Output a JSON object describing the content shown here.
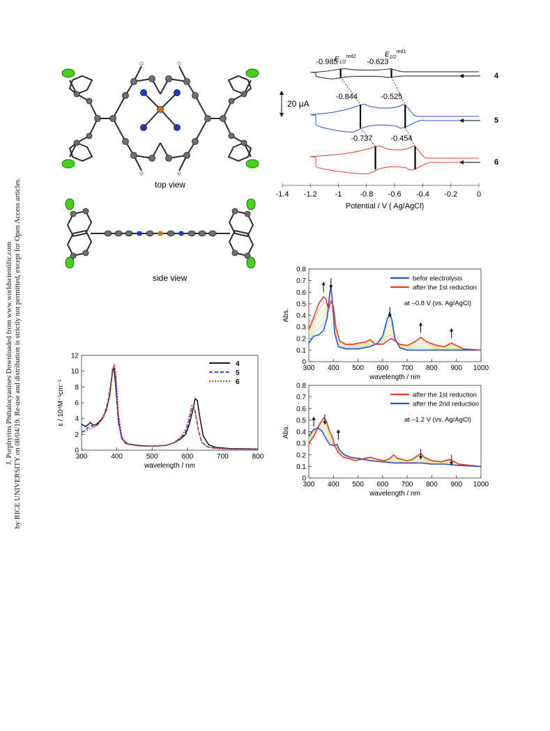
{
  "sidebar": {
    "line1": "J. Porphyrins Phthalocyanines Downloaded from www.worldscientific.com",
    "line2": "by RICE UNIVERSITY on 08/04/19. Re-use and distribution is strictly not permitted, except for Open Access articles."
  },
  "structure": {
    "top_caption": "top view",
    "side_caption": "side view"
  },
  "colors": {
    "black": "#1a1a1a",
    "blue": "#2b4fd6",
    "red": "#e8392c",
    "green_atom": "#46d11f",
    "grey_atom": "#6f6f6f",
    "n_atom": "#1f3bc2",
    "metal_atom": "#c8741e"
  },
  "chart_data": [
    {
      "id": "cv",
      "type": "line",
      "xlabel": "Potential / V ( Ag/AgCl)",
      "x_ticks": [
        "-1.4",
        "-1.2",
        "-1",
        "-0.8",
        "-0.6",
        "-0.4",
        "-0.2",
        "0"
      ],
      "xlim": [
        -1.4,
        0
      ],
      "scale_bar_label": "20 μA",
      "peak_header_1": "E1/2red2",
      "peak_header_2": "E1/2red1",
      "series": [
        {
          "name": "4",
          "e_red2": -0.985,
          "e_red1": -0.623,
          "labels": [
            "-0.985",
            "-0.623"
          ]
        },
        {
          "name": "5",
          "e_red2": -0.844,
          "e_red1": -0.525,
          "labels": [
            "-0.844",
            "-0.525"
          ]
        },
        {
          "name": "6",
          "e_red2": -0.737,
          "e_red1": -0.454,
          "labels": [
            "-0.737",
            "-0.454"
          ]
        }
      ]
    },
    {
      "id": "uvvis",
      "type": "line",
      "xlabel": "wavelength / nm",
      "ylabel": "ε / 10⁴M⁻¹cm⁻¹",
      "xlim": [
        300,
        800
      ],
      "ylim": [
        0,
        12
      ],
      "x_ticks": [
        "300",
        "400",
        "500",
        "600",
        "700",
        "800"
      ],
      "y_ticks": [
        "0",
        "2",
        "4",
        "6",
        "8",
        "10",
        "12"
      ],
      "legend": [
        "4",
        "5",
        "6"
      ],
      "series": [
        {
          "name": "4",
          "points": [
            [
              300,
              3.3
            ],
            [
              310,
              3.0
            ],
            [
              318,
              3.2
            ],
            [
              325,
              3.5
            ],
            [
              332,
              3.2
            ],
            [
              340,
              3.2
            ],
            [
              350,
              3.6
            ],
            [
              360,
              4.1
            ],
            [
              370,
              5.0
            ],
            [
              380,
              7.0
            ],
            [
              388,
              10.2
            ],
            [
              392,
              10.4
            ],
            [
              397,
              8.0
            ],
            [
              405,
              3.5
            ],
            [
              415,
              1.4
            ],
            [
              430,
              0.8
            ],
            [
              460,
              0.6
            ],
            [
              500,
              0.5
            ],
            [
              540,
              0.6
            ],
            [
              560,
              0.9
            ],
            [
              580,
              1.4
            ],
            [
              595,
              2.0
            ],
            [
              605,
              3.2
            ],
            [
              615,
              5.0
            ],
            [
              622,
              6.5
            ],
            [
              628,
              6.3
            ],
            [
              636,
              4.0
            ],
            [
              645,
              1.8
            ],
            [
              660,
              0.7
            ],
            [
              680,
              0.35
            ],
            [
              720,
              0.2
            ],
            [
              800,
              0.15
            ]
          ]
        },
        {
          "name": "5",
          "points": [
            [
              300,
              2.3
            ],
            [
              310,
              2.5
            ],
            [
              318,
              2.9
            ],
            [
              325,
              3.1
            ],
            [
              335,
              3.0
            ],
            [
              345,
              3.2
            ],
            [
              355,
              3.7
            ],
            [
              365,
              4.6
            ],
            [
              375,
              6.2
            ],
            [
              385,
              9.0
            ],
            [
              391,
              10.6
            ],
            [
              396,
              9.6
            ],
            [
              403,
              4.5
            ],
            [
              412,
              1.7
            ],
            [
              425,
              0.8
            ],
            [
              460,
              0.55
            ],
            [
              500,
              0.5
            ],
            [
              540,
              0.6
            ],
            [
              560,
              0.9
            ],
            [
              580,
              1.5
            ],
            [
              595,
              2.3
            ],
            [
              605,
              3.8
            ],
            [
              612,
              5.3
            ],
            [
              617,
              5.6
            ],
            [
              622,
              5.0
            ],
            [
              630,
              2.8
            ],
            [
              640,
              1.1
            ],
            [
              655,
              0.45
            ],
            [
              680,
              0.25
            ],
            [
              720,
              0.15
            ],
            [
              800,
              0.12
            ]
          ]
        },
        {
          "name": "6",
          "points": [
            [
              300,
              2.2
            ],
            [
              310,
              2.4
            ],
            [
              320,
              2.7
            ],
            [
              330,
              2.8
            ],
            [
              340,
              3.0
            ],
            [
              350,
              3.4
            ],
            [
              360,
              4.0
            ],
            [
              370,
              5.0
            ],
            [
              380,
              7.0
            ],
            [
              388,
              9.8
            ],
            [
              393,
              10.9
            ],
            [
              398,
              9.5
            ],
            [
              405,
              4.6
            ],
            [
              414,
              1.8
            ],
            [
              425,
              0.8
            ],
            [
              460,
              0.55
            ],
            [
              500,
              0.5
            ],
            [
              540,
              0.6
            ],
            [
              560,
              0.9
            ],
            [
              580,
              1.6
            ],
            [
              595,
              2.6
            ],
            [
              605,
              4.2
            ],
            [
              612,
              5.6
            ],
            [
              618,
              5.5
            ],
            [
              624,
              4.4
            ],
            [
              632,
              2.3
            ],
            [
              642,
              0.9
            ],
            [
              658,
              0.4
            ],
            [
              680,
              0.22
            ],
            [
              720,
              0.14
            ],
            [
              800,
              0.12
            ]
          ]
        }
      ]
    },
    {
      "id": "spec1",
      "type": "line",
      "ylabel": "Abs.",
      "xlabel": "wavelength / nm",
      "xlim": [
        300,
        1000
      ],
      "ylim": [
        0,
        0.8
      ],
      "x_ticks": [
        "300",
        "400",
        "500",
        "600",
        "700",
        "800",
        "900",
        "1000"
      ],
      "y_ticks": [
        "0",
        "0.1",
        "0.2",
        "0.3",
        "0.4",
        "0.5",
        "0.6",
        "0.7",
        "0.8"
      ],
      "legend": [
        "befor electrolysis",
        "after the 1st reduction"
      ],
      "condition": "at –0.8 V (vs. Ag/AgCl)",
      "series": [
        {
          "name": "befor electrolysis",
          "points": [
            [
              300,
              0.16
            ],
            [
              320,
              0.22
            ],
            [
              340,
              0.23
            ],
            [
              360,
              0.27
            ],
            [
              375,
              0.38
            ],
            [
              385,
              0.6
            ],
            [
              390,
              0.65
            ],
            [
              395,
              0.55
            ],
            [
              405,
              0.25
            ],
            [
              420,
              0.13
            ],
            [
              450,
              0.11
            ],
            [
              500,
              0.11
            ],
            [
              550,
              0.13
            ],
            [
              580,
              0.16
            ],
            [
              600,
              0.22
            ],
            [
              615,
              0.34
            ],
            [
              628,
              0.42
            ],
            [
              638,
              0.36
            ],
            [
              650,
              0.2
            ],
            [
              670,
              0.12
            ],
            [
              700,
              0.1
            ],
            [
              800,
              0.1
            ],
            [
              900,
              0.1
            ],
            [
              1000,
              0.1
            ]
          ]
        },
        {
          "name": "after the 1st reduction",
          "points": [
            [
              300,
              0.28
            ],
            [
              320,
              0.38
            ],
            [
              340,
              0.5
            ],
            [
              360,
              0.56
            ],
            [
              370,
              0.54
            ],
            [
              380,
              0.45
            ],
            [
              390,
              0.52
            ],
            [
              400,
              0.48
            ],
            [
              410,
              0.3
            ],
            [
              425,
              0.18
            ],
            [
              450,
              0.15
            ],
            [
              480,
              0.15
            ],
            [
              500,
              0.16
            ],
            [
              530,
              0.17
            ],
            [
              550,
              0.19
            ],
            [
              570,
              0.15
            ],
            [
              600,
              0.15
            ],
            [
              620,
              0.18
            ],
            [
              635,
              0.2
            ],
            [
              650,
              0.18
            ],
            [
              670,
              0.15
            ],
            [
              700,
              0.14
            ],
            [
              730,
              0.17
            ],
            [
              755,
              0.21
            ],
            [
              780,
              0.17
            ],
            [
              820,
              0.14
            ],
            [
              850,
              0.13
            ],
            [
              880,
              0.16
            ],
            [
              900,
              0.14
            ],
            [
              930,
              0.11
            ],
            [
              1000,
              0.1
            ]
          ]
        }
      ]
    },
    {
      "id": "spec2",
      "type": "line",
      "ylabel": "Abs.",
      "xlabel": "wavelength / nm",
      "xlim": [
        300,
        1000
      ],
      "ylim": [
        0,
        0.8
      ],
      "x_ticks": [
        "300",
        "400",
        "500",
        "600",
        "700",
        "800",
        "900",
        "1000"
      ],
      "y_ticks": [
        "0",
        "0.1",
        "0.2",
        "0.3",
        "0.4",
        "0.5",
        "0.6",
        "0.7",
        "0.8"
      ],
      "legend": [
        "after the 1st reduction",
        "after the 2nd reduction"
      ],
      "condition": "at –1.2 V (vs. Ag/AgCl)",
      "series": [
        {
          "name": "after the 1st reduction",
          "points": [
            [
              300,
              0.3
            ],
            [
              320,
              0.36
            ],
            [
              340,
              0.45
            ],
            [
              360,
              0.52
            ],
            [
              370,
              0.5
            ],
            [
              385,
              0.4
            ],
            [
              395,
              0.36
            ],
            [
              405,
              0.28
            ],
            [
              420,
              0.22
            ],
            [
              440,
              0.18
            ],
            [
              460,
              0.17
            ],
            [
              490,
              0.15
            ],
            [
              510,
              0.16
            ],
            [
              530,
              0.17
            ],
            [
              550,
              0.18
            ],
            [
              580,
              0.16
            ],
            [
              610,
              0.15
            ],
            [
              630,
              0.17
            ],
            [
              645,
              0.2
            ],
            [
              660,
              0.17
            ],
            [
              680,
              0.16
            ],
            [
              700,
              0.15
            ],
            [
              720,
              0.16
            ],
            [
              740,
              0.19
            ],
            [
              755,
              0.21
            ],
            [
              770,
              0.18
            ],
            [
              800,
              0.15
            ],
            [
              840,
              0.14
            ],
            [
              870,
              0.16
            ],
            [
              885,
              0.15
            ],
            [
              910,
              0.12
            ],
            [
              1000,
              0.1
            ]
          ]
        },
        {
          "name": "after the 2nd reduction",
          "points": [
            [
              300,
              0.36
            ],
            [
              320,
              0.42
            ],
            [
              340,
              0.43
            ],
            [
              355,
              0.4
            ],
            [
              370,
              0.34
            ],
            [
              385,
              0.29
            ],
            [
              400,
              0.28
            ],
            [
              415,
              0.29
            ],
            [
              425,
              0.24
            ],
            [
              445,
              0.2
            ],
            [
              470,
              0.18
            ],
            [
              500,
              0.17
            ],
            [
              550,
              0.15
            ],
            [
              600,
              0.14
            ],
            [
              650,
              0.13
            ],
            [
              700,
              0.13
            ],
            [
              760,
              0.13
            ],
            [
              800,
              0.12
            ],
            [
              850,
              0.12
            ],
            [
              900,
              0.11
            ],
            [
              1000,
              0.1
            ]
          ]
        }
      ]
    }
  ]
}
